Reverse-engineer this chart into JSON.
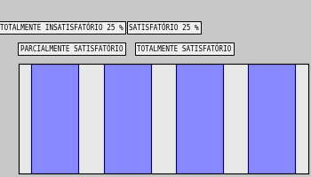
{
  "bar_color": "#8888FF",
  "bar_edge_color": "#000060",
  "background_color": "#C8C8C8",
  "plot_bg_color": "#E8E8E8",
  "legend_row1": [
    "TOTALMENTE INSATISFATÓRIO 25 %",
    "SATISFATÓRIO 25 %"
  ],
  "legend_row2": [
    "PARCIALMENTE SATISFATÓRIO",
    "TOTALMENTE SATISFATÓRIO"
  ],
  "n_bars": 4,
  "bar_value": 100,
  "ylim": [
    0,
    100
  ],
  "bar_width": 0.65,
  "font_size": 5.5,
  "fig_width": 3.5,
  "fig_height": 2.0,
  "dpi": 100
}
